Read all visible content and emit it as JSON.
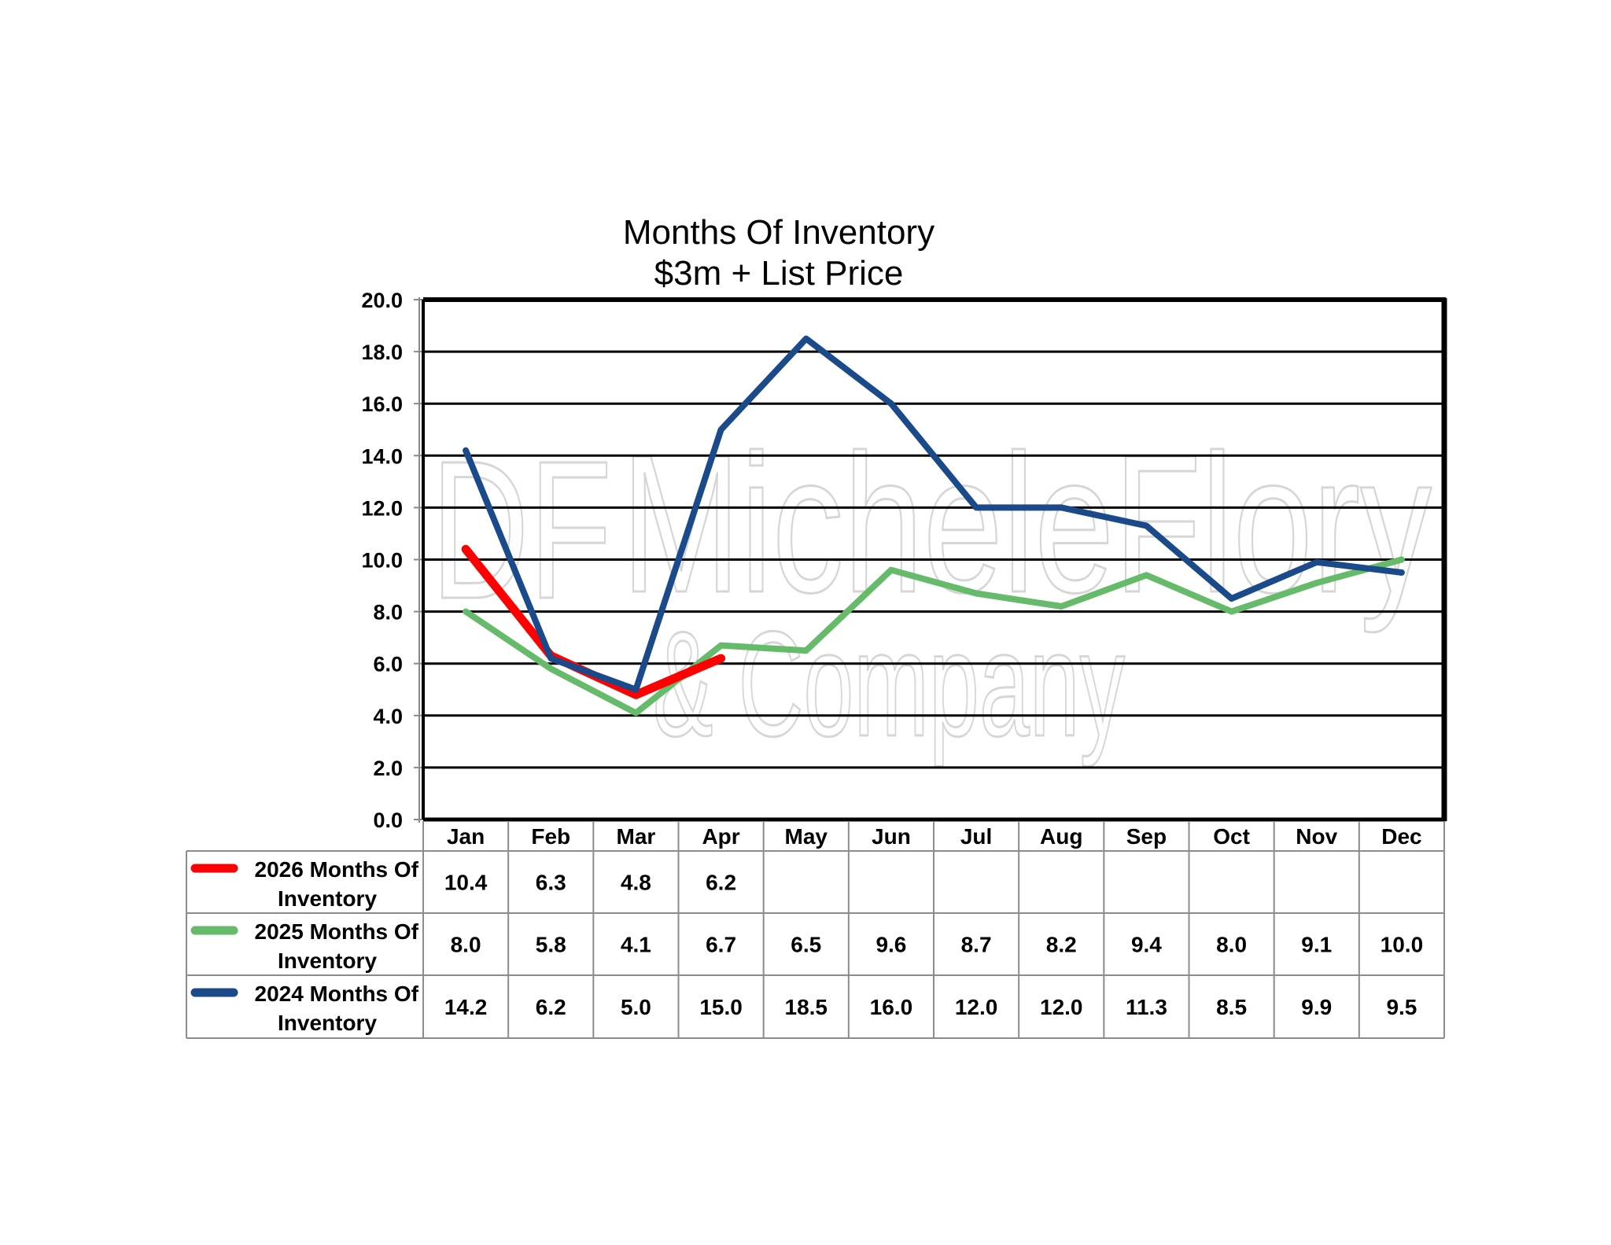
{
  "chart_data": {
    "type": "line",
    "title": "Months Of Inventory",
    "subtitle": "$3m + List Price",
    "xlabel": "",
    "ylabel": "",
    "ylim": [
      0,
      20
    ],
    "yticks": [
      "0.0",
      "2.0",
      "4.0",
      "6.0",
      "8.0",
      "10.0",
      "12.0",
      "14.0",
      "16.0",
      "18.0",
      "20.0"
    ],
    "grid": true,
    "legend_placement": "data-table-left",
    "categories": [
      "Jan",
      "Feb",
      "Mar",
      "Apr",
      "May",
      "Jun",
      "Jul",
      "Aug",
      "Sep",
      "Oct",
      "Nov",
      "Dec"
    ],
    "series": [
      {
        "name": "2026 Months Of Inventory",
        "label_line1": "2026 Months Of",
        "label_line2": "Inventory",
        "color": "#ff0000",
        "values": [
          10.4,
          6.3,
          4.8,
          6.2,
          null,
          null,
          null,
          null,
          null,
          null,
          null,
          null
        ],
        "labels": [
          "10.4",
          "6.3",
          "4.8",
          "6.2",
          "",
          "",
          "",
          "",
          "",
          "",
          "",
          ""
        ]
      },
      {
        "name": "2025 Months Of Inventory",
        "label_line1": "2025 Months Of",
        "label_line2": "Inventory",
        "color": "#66bb6a",
        "values": [
          8.0,
          5.8,
          4.1,
          6.7,
          6.5,
          9.6,
          8.7,
          8.2,
          9.4,
          8.0,
          9.1,
          10.0
        ],
        "labels": [
          "8.0",
          "5.8",
          "4.1",
          "6.7",
          "6.5",
          "9.6",
          "8.7",
          "8.2",
          "9.4",
          "8.0",
          "9.1",
          "10.0"
        ]
      },
      {
        "name": "2024 Months Of Inventory",
        "label_line1": "2024 Months Of",
        "label_line2": "Inventory",
        "color": "#1a4a8a",
        "values": [
          14.2,
          6.2,
          5.0,
          15.0,
          18.5,
          16.0,
          12.0,
          12.0,
          11.3,
          8.5,
          9.9,
          9.5
        ],
        "labels": [
          "14.2",
          "6.2",
          "5.0",
          "15.0",
          "18.5",
          "16.0",
          "12.0",
          "12.0",
          "11.3",
          "8.5",
          "9.9",
          "9.5"
        ]
      }
    ]
  },
  "watermark": {
    "line1": "MicheleFlory",
    "line2": "& Company",
    "logo": "DF"
  }
}
